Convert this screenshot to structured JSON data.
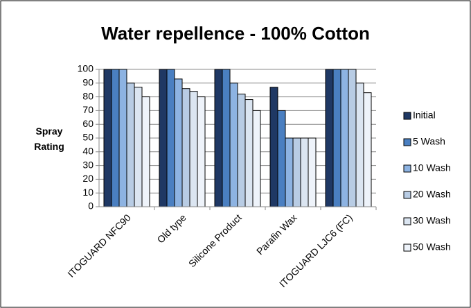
{
  "chart_data": {
    "type": "bar",
    "title": "Water repellence - 100% Cotton",
    "y_label": "Spray Rating",
    "categories": [
      "ITOGUARD NFC90",
      "Old type",
      "Silicone Product",
      "Parafin Wax",
      "ITOGUARD LJC6 (FC)"
    ],
    "series": [
      {
        "name": "Initial",
        "color": "#1f3864",
        "values": [
          100,
          100,
          100,
          87,
          100
        ]
      },
      {
        "name": "5 Wash",
        "color": "#4a7fc1",
        "values": [
          100,
          100,
          100,
          70,
          100
        ]
      },
      {
        "name": "10 Wash",
        "color": "#8db3e2",
        "values": [
          100,
          93,
          90,
          50,
          100
        ]
      },
      {
        "name": "20 Wash",
        "color": "#b8cce4",
        "values": [
          90,
          86,
          82,
          50,
          100
        ]
      },
      {
        "name": "30 Wash",
        "color": "#dbe5f1",
        "values": [
          87,
          84,
          78,
          50,
          90
        ]
      },
      {
        "name": "50 Wash",
        "color": "#eef3fa",
        "values": [
          80,
          80,
          70,
          50,
          83
        ]
      }
    ],
    "ylim": [
      0,
      100
    ],
    "yticks": [
      0,
      10,
      20,
      30,
      40,
      50,
      60,
      70,
      80,
      90,
      100
    ],
    "grid": true,
    "legend": "right"
  }
}
